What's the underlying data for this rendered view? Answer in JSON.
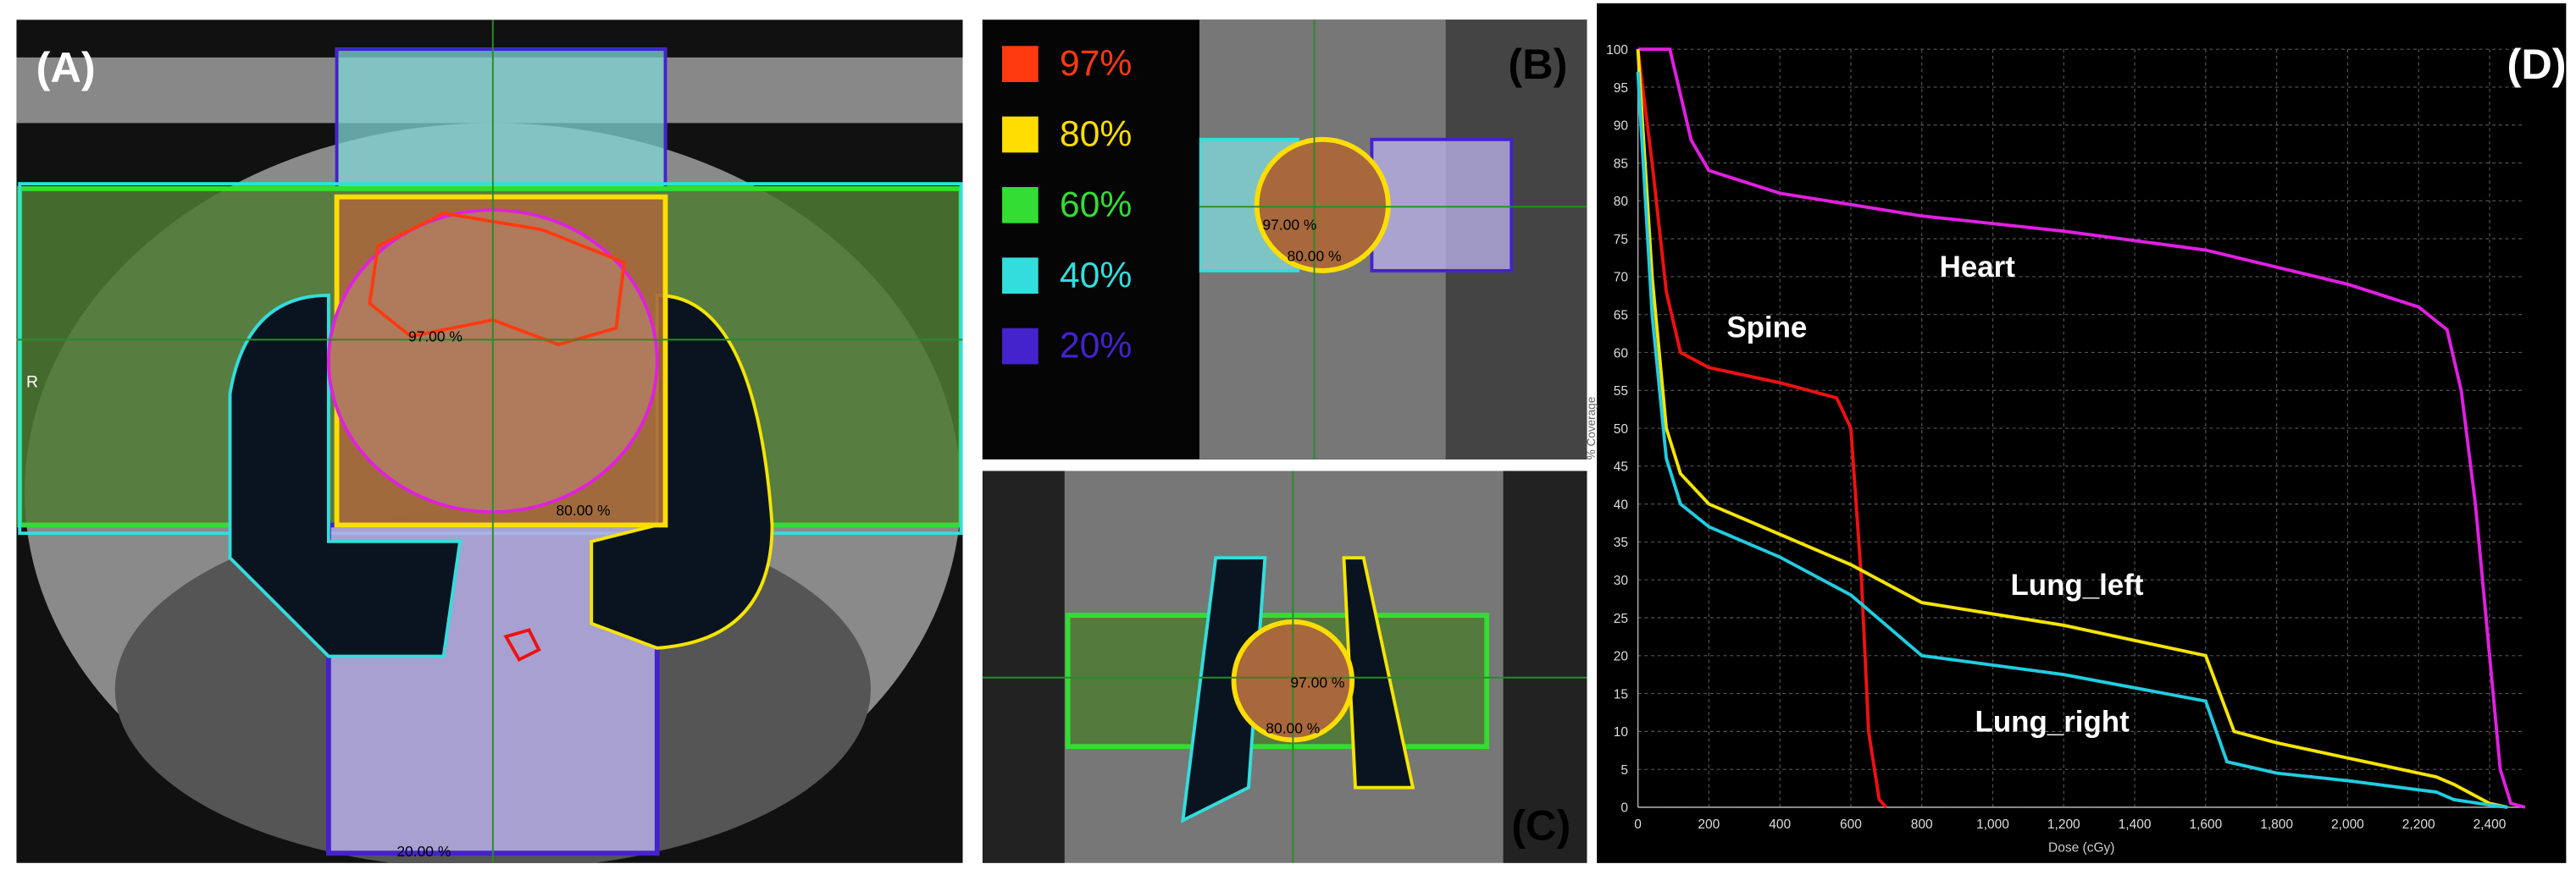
{
  "panels": {
    "a": {
      "label": "(A)",
      "orientation": "R",
      "contour_labels": [
        "97.00 %",
        "80.00 %",
        "20.00 %"
      ]
    },
    "b": {
      "label": "(B)",
      "contour_labels": [
        "97.00 %",
        "80.00 %"
      ],
      "legend": [
        {
          "text": "97%",
          "color": "#ff3a10"
        },
        {
          "text": "80%",
          "color": "#ffdd00"
        },
        {
          "text": "60%",
          "color": "#33dd33"
        },
        {
          "text": "40%",
          "color": "#33dddd"
        },
        {
          "text": "20%",
          "color": "#4422cc"
        }
      ]
    },
    "c": {
      "label": "(C)",
      "contour_labels": [
        "97.00 %",
        "80.00 %"
      ]
    },
    "d": {
      "label": "(D)"
    }
  },
  "chart_data": {
    "type": "line",
    "x_label": "Dose (cGy)",
    "y_label": "% Coverage",
    "xlim": [
      0,
      2500
    ],
    "ylim": [
      0,
      100
    ],
    "xticks": [
      0,
      200,
      400,
      600,
      800,
      {
        "value": 1000,
        "label": "1,000"
      },
      {
        "value": 1200,
        "label": "1,200"
      },
      {
        "value": 1400,
        "label": "1,400"
      },
      {
        "value": 1600,
        "label": "1,600"
      },
      {
        "value": 1800,
        "label": "1,800"
      },
      {
        "value": 2000,
        "label": "2,000"
      },
      {
        "value": 2200,
        "label": "2,200"
      },
      {
        "value": 2400,
        "label": "2,400"
      }
    ],
    "yticks": [
      0,
      5,
      10,
      15,
      20,
      25,
      30,
      35,
      40,
      45,
      50,
      55,
      60,
      65,
      70,
      75,
      80,
      85,
      90,
      95,
      100
    ],
    "grid": true,
    "series": [
      {
        "name": "Heart",
        "color": "#e020e0",
        "x": [
          0,
          90,
          150,
          200,
          400,
          800,
          1200,
          1600,
          2000,
          2200,
          2280,
          2320,
          2360,
          2400,
          2430,
          2460,
          2500
        ],
        "values": [
          100,
          100,
          88,
          84,
          81,
          78,
          76,
          73.5,
          69,
          66,
          63,
          55,
          40,
          20,
          5,
          0.5,
          0
        ]
      },
      {
        "name": "Spine",
        "color": "#ee1111",
        "x": [
          0,
          40,
          80,
          120,
          200,
          400,
          560,
          600,
          630,
          650,
          680,
          700
        ],
        "values": [
          100,
          85,
          68,
          60,
          58,
          56,
          54,
          50,
          30,
          10,
          1,
          0
        ]
      },
      {
        "name": "Lung_left",
        "color": "#f5e400",
        "x": [
          0,
          40,
          80,
          120,
          200,
          400,
          600,
          800,
          1200,
          1600,
          1680,
          1800,
          2000,
          2250,
          2300,
          2400,
          2450
        ],
        "values": [
          100,
          70,
          50,
          44,
          40,
          36,
          32,
          27,
          24,
          20,
          10,
          8.5,
          6.5,
          4,
          3,
          0.5,
          0
        ]
      },
      {
        "name": "Lung_right",
        "color": "#22cce0",
        "x": [
          0,
          40,
          80,
          120,
          200,
          400,
          600,
          700,
          800,
          1200,
          1600,
          1660,
          1800,
          2000,
          2250,
          2300,
          2400,
          2450
        ],
        "values": [
          97,
          65,
          46,
          40,
          37,
          33,
          28,
          24,
          20,
          17.5,
          14,
          6,
          4.5,
          3.5,
          2,
          1,
          0.3,
          0
        ]
      }
    ]
  }
}
